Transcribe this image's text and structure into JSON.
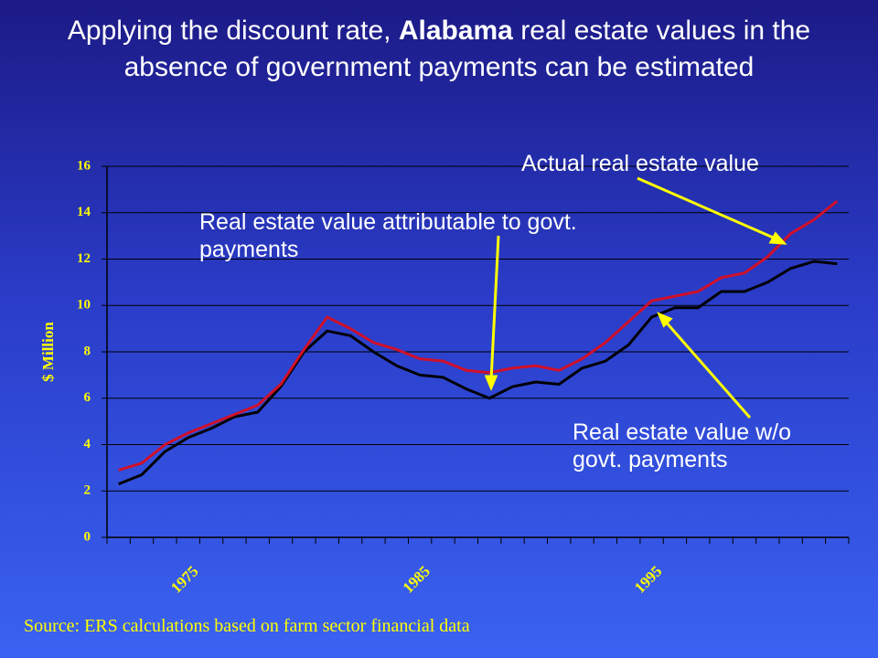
{
  "chart_data": {
    "type": "line",
    "title_parts": [
      "Applying the discount rate,",
      "Alabama",
      "real estate values in the absence of government payments can be estimated"
    ],
    "y_label": "$ Million",
    "source": "Source: ERS calculations based on farm sector financial data",
    "categories": [
      null,
      null,
      null,
      "1975",
      null,
      null,
      null,
      null,
      null,
      null,
      null,
      null,
      null,
      "1985",
      null,
      null,
      null,
      null,
      null,
      null,
      null,
      null,
      null,
      "1995",
      null,
      null,
      null,
      null,
      null,
      null,
      null,
      null
    ],
    "series": [
      {
        "name": "Actual real estate value",
        "color": "#d0102a",
        "values": [
          2.9,
          3.2,
          4.0,
          4.5,
          4.9,
          5.3,
          5.7,
          6.6,
          8.1,
          9.5,
          9.0,
          8.4,
          8.1,
          7.7,
          7.6,
          7.2,
          7.1,
          7.3,
          7.4,
          7.2,
          7.7,
          8.4,
          9.3,
          10.2,
          10.4,
          10.6,
          11.2,
          11.4,
          12.1,
          13.1,
          13.7,
          14.5
        ]
      },
      {
        "name": "Real estate value w/o govt. payments",
        "color": "#000000",
        "values": [
          2.3,
          2.7,
          3.7,
          4.3,
          4.7,
          5.2,
          5.4,
          6.5,
          8.0,
          8.9,
          8.7,
          8.0,
          7.4,
          7.0,
          6.9,
          6.4,
          6.0,
          6.5,
          6.7,
          6.6,
          7.3,
          7.6,
          8.3,
          9.5,
          9.9,
          9.9,
          10.6,
          10.6,
          11.0,
          11.6,
          11.9,
          11.8
        ]
      }
    ],
    "annotations": [
      "Real estate value attributable to govt. payments"
    ],
    "ylim": [
      0,
      16
    ],
    "yticks": [
      0,
      2,
      4,
      6,
      8,
      10,
      12,
      14,
      16
    ],
    "grid": true
  }
}
